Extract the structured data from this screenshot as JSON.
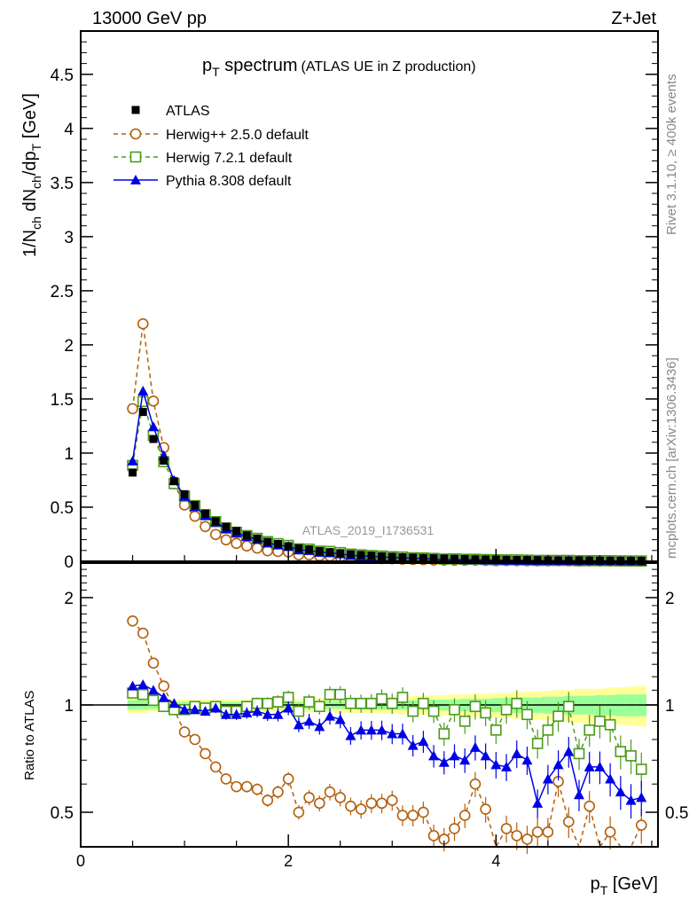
{
  "header": {
    "left": "13000 GeV pp",
    "right": "Z+Jet"
  },
  "side": {
    "rivet": "Rivet 3.1.10, ≥ 400k events",
    "mcplots": "mcplots.cern.ch [arXiv:1306.3436]"
  },
  "chart_data": {
    "type": "line",
    "title_main": "p",
    "title_sub": "T",
    "title_rest": " spectrum",
    "title_paren": "(ATLAS UE in Z production)",
    "watermark": "ATLAS_2019_I1736531",
    "ylabel": "1/N_ch dN_ch/dp_T [GeV]",
    "ratio_ylabel": "Ratio to ATLAS",
    "xlabel": "p_T [GeV]",
    "xlim": [
      0,
      5.56
    ],
    "ylim": [
      0,
      4.9
    ],
    "ratio_ylim": [
      0.4,
      2.5
    ],
    "ratio_scale": "log",
    "x_ticks": [
      "0",
      "2",
      "4"
    ],
    "y_ticks": [
      "0",
      "0.5",
      "1",
      "1.5",
      "2",
      "2.5",
      "3",
      "3.5",
      "4",
      "4.5"
    ],
    "ratio_ticks": [
      "0.5",
      "1",
      "2"
    ],
    "legend": [
      {
        "name": "ATLAS",
        "color": "#000000",
        "marker": "square-filled"
      },
      {
        "name": "Herwig++ 2.5.0 default",
        "color": "#b35f0c",
        "marker": "circle-open"
      },
      {
        "name": "Herwig 7.2.1 default",
        "color": "#4c9a1c",
        "marker": "square-open"
      },
      {
        "name": "Pythia 8.308 default",
        "color": "#0000e6",
        "marker": "triangle-filled"
      }
    ],
    "x_start": 0.5,
    "x_step": 0.1,
    "atlas": [
      0.82,
      1.38,
      1.13,
      0.93,
      0.74,
      0.62,
      0.52,
      0.44,
      0.37,
      0.32,
      0.28,
      0.24,
      0.21,
      0.18,
      0.16,
      0.14,
      0.12,
      0.11,
      0.095,
      0.085,
      0.075,
      0.066,
      0.059,
      0.053,
      0.047,
      0.042,
      0.038,
      0.034,
      0.031,
      0.028,
      0.025,
      0.023,
      0.021,
      0.019,
      0.017,
      0.016,
      0.014,
      0.013,
      0.012,
      0.011,
      0.01,
      0.009,
      0.0085,
      0.008,
      0.0072,
      0.0066,
      0.006,
      0.0055,
      0.005,
      0.0046
    ],
    "band_inner": [
      0.03,
      0.03,
      0.025,
      0.02,
      0.02,
      0.02,
      0.02,
      0.02,
      0.02,
      0.02,
      0.02,
      0.02,
      0.02,
      0.02,
      0.02,
      0.02,
      0.02,
      0.025,
      0.025,
      0.025,
      0.025,
      0.025,
      0.03,
      0.03,
      0.03,
      0.03,
      0.03,
      0.03,
      0.03,
      0.035,
      0.035,
      0.035,
      0.04,
      0.04,
      0.04,
      0.045,
      0.045,
      0.05,
      0.05,
      0.05,
      0.055,
      0.055,
      0.06,
      0.06,
      0.06,
      0.065,
      0.065,
      0.07,
      0.07,
      0.07
    ],
    "band_outer": [
      0.05,
      0.05,
      0.04,
      0.035,
      0.035,
      0.035,
      0.035,
      0.035,
      0.035,
      0.035,
      0.035,
      0.035,
      0.04,
      0.04,
      0.04,
      0.04,
      0.04,
      0.045,
      0.045,
      0.045,
      0.05,
      0.05,
      0.05,
      0.05,
      0.055,
      0.055,
      0.06,
      0.06,
      0.06,
      0.065,
      0.065,
      0.07,
      0.07,
      0.075,
      0.075,
      0.08,
      0.08,
      0.085,
      0.09,
      0.09,
      0.095,
      0.1,
      0.1,
      0.11,
      0.11,
      0.11,
      0.12,
      0.12,
      0.125,
      0.13
    ],
    "series": [
      {
        "name": "Herwig++ 2.5.0 default",
        "ratio": [
          1.72,
          1.59,
          1.31,
          1.13,
          0.97,
          0.84,
          0.8,
          0.73,
          0.67,
          0.62,
          0.59,
          0.59,
          0.58,
          0.54,
          0.57,
          0.62,
          0.5,
          0.55,
          0.53,
          0.57,
          0.55,
          0.52,
          0.51,
          0.53,
          0.53,
          0.54,
          0.49,
          0.49,
          0.5,
          0.43,
          0.42,
          0.45,
          0.49,
          0.6,
          0.51,
          0.38,
          0.45,
          0.43,
          0.42,
          0.44,
          0.44,
          0.61,
          0.47,
          0.38,
          0.52,
          0.38,
          0.44,
          0.38,
          0.4,
          0.46
        ]
      },
      {
        "name": "Herwig 7.2.1 default",
        "ratio": [
          1.08,
          1.07,
          1.03,
          0.99,
          0.97,
          0.97,
          0.99,
          0.98,
          0.99,
          0.96,
          0.96,
          0.99,
          1.01,
          1.01,
          1.02,
          1.05,
          0.96,
          1.02,
          0.99,
          1.07,
          1.07,
          1.01,
          1.01,
          1.01,
          1.04,
          1.01,
          1.05,
          0.96,
          1.01,
          0.96,
          0.83,
          0.97,
          0.9,
          0.99,
          0.95,
          0.85,
          0.97,
          1.01,
          0.94,
          0.78,
          0.85,
          0.93,
          0.99,
          0.73,
          0.85,
          0.9,
          0.88,
          0.74,
          0.72,
          0.66
        ]
      },
      {
        "name": "Pythia 8.308 default",
        "ratio": [
          1.13,
          1.14,
          1.1,
          1.05,
          1.01,
          0.97,
          0.97,
          0.96,
          0.98,
          0.94,
          0.94,
          0.95,
          0.96,
          0.94,
          0.94,
          0.98,
          0.88,
          0.9,
          0.87,
          0.93,
          0.91,
          0.82,
          0.85,
          0.85,
          0.85,
          0.83,
          0.83,
          0.77,
          0.79,
          0.72,
          0.69,
          0.72,
          0.7,
          0.76,
          0.72,
          0.68,
          0.67,
          0.73,
          0.7,
          0.53,
          0.62,
          0.68,
          0.74,
          0.56,
          0.67,
          0.67,
          0.62,
          0.57,
          0.54,
          0.55
        ]
      }
    ]
  }
}
